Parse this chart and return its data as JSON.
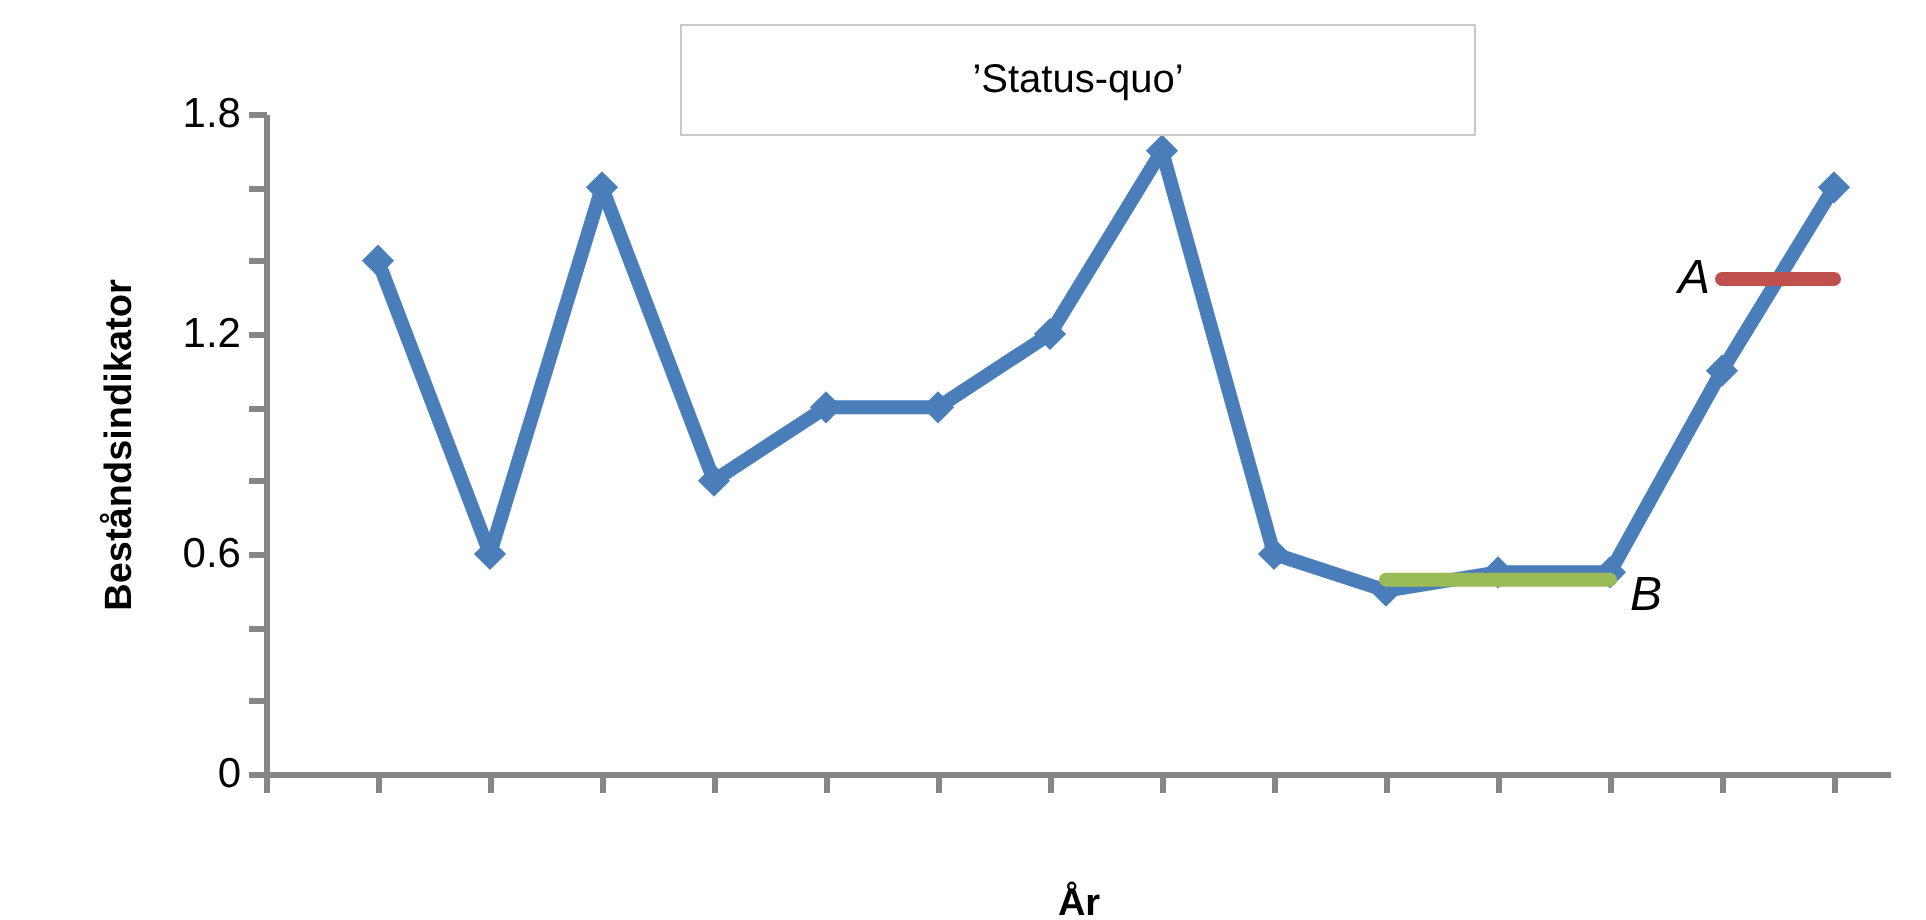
{
  "chart_data": {
    "type": "line",
    "title": "’Status-quo’",
    "xlabel": "År",
    "ylabel": "Beståndsindikator",
    "categories": [
      null,
      null,
      null,
      null,
      null,
      null,
      null,
      null,
      null,
      null,
      null,
      null,
      null,
      null
    ],
    "ylim": [
      0,
      1.8
    ],
    "yticks": [
      0,
      {
        "value": 0.2,
        "label": null
      },
      {
        "value": 0.4,
        "label": null
      },
      0.6,
      {
        "value": 0.8,
        "label": null
      },
      {
        "value": 1.0,
        "label": null
      },
      1.2,
      {
        "value": 1.4,
        "label": null
      },
      {
        "value": 1.6,
        "label": null
      },
      1.8
    ],
    "grid": false,
    "marker": "diamond",
    "series": [
      {
        "color": "#4a7ebb",
        "values": [
          1.4,
          0.6,
          1.6,
          0.8,
          1.0,
          1.0,
          1.2,
          1.7,
          0.6,
          0.5,
          0.55,
          0.55,
          1.1,
          1.6
        ]
      },
      {
        "name": "A",
        "color": "#c0504d",
        "marker": "none",
        "values": [
          null,
          null,
          null,
          null,
          null,
          null,
          null,
          null,
          null,
          null,
          null,
          null,
          1.35,
          1.35
        ]
      },
      {
        "name": "B",
        "color": "#9bbb59",
        "marker": "none",
        "values": [
          null,
          null,
          null,
          null,
          null,
          null,
          null,
          null,
          null,
          0.53,
          0.53,
          0.53,
          null,
          null
        ]
      }
    ]
  }
}
